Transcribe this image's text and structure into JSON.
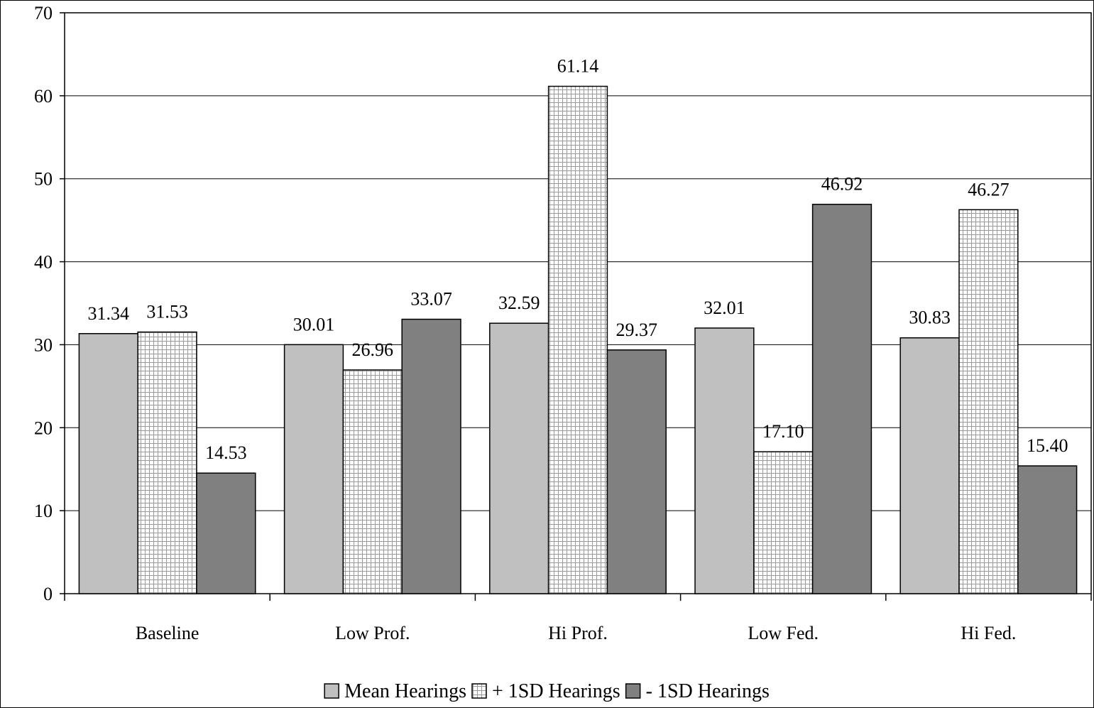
{
  "chart_data": {
    "type": "bar",
    "categories": [
      "Baseline",
      "Low Prof.",
      "Hi Prof.",
      "Low Fed.",
      "Hi Fed."
    ],
    "series": [
      {
        "name": "Mean Hearings",
        "values": [
          31.34,
          30.01,
          32.59,
          32.01,
          30.83
        ],
        "color": "#c0c0c0",
        "pattern": "solid"
      },
      {
        "name": "+ 1SD Hearings",
        "values": [
          31.53,
          26.96,
          61.14,
          17.1,
          46.27
        ],
        "color": "#ffffff",
        "pattern": "grid"
      },
      {
        "name": "- 1SD Hearings",
        "values": [
          14.53,
          33.07,
          29.37,
          46.92,
          15.4
        ],
        "color": "#808080",
        "pattern": "solid"
      }
    ],
    "data_labels": [
      [
        "31.34",
        "30.01",
        "32.59",
        "32.01",
        "30.83"
      ],
      [
        "31.53",
        "26.96",
        "61.14",
        "17.10",
        "46.27"
      ],
      [
        "14.53",
        "33.07",
        "29.37",
        "46.92",
        "15.40"
      ]
    ],
    "ylim": [
      0,
      70
    ],
    "yticks": [
      0,
      10,
      20,
      30,
      40,
      50,
      60,
      70
    ],
    "ytick_labels": [
      "0",
      "10",
      "20",
      "30",
      "40",
      "50",
      "60",
      "70"
    ],
    "title": "",
    "xlabel": "",
    "ylabel": "",
    "grid": "horizontal",
    "legend_position": "bottom"
  }
}
